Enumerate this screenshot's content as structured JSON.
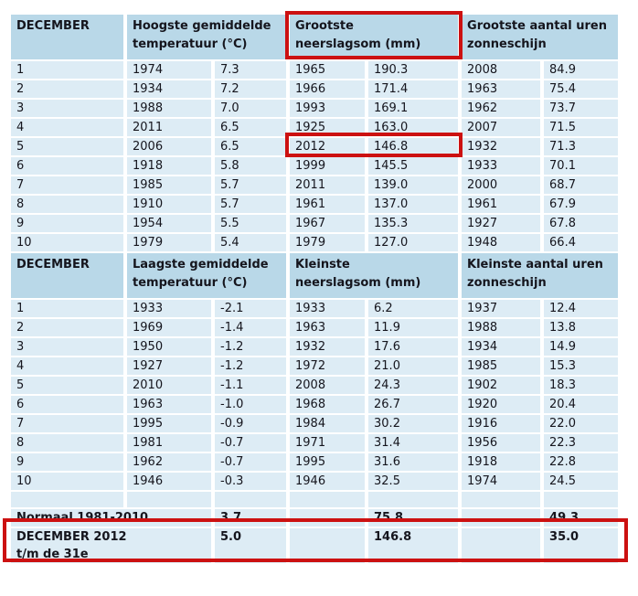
{
  "colors": {
    "header_bg": "#b9d8e8",
    "row_bg": "#ddecf5",
    "text": "#15151d",
    "highlight_red": "#cc1111"
  },
  "section1": {
    "col_headers": [
      {
        "line1": "DECEMBER",
        "line2": ""
      },
      {
        "line1": "Hoogste gemiddelde",
        "line2": "temperatuur (°C)"
      },
      {
        "line1": "Grootste",
        "line2": "neerslagsom (mm)"
      },
      {
        "line1": "Grootste aantal uren",
        "line2": "zonneschijn"
      }
    ],
    "rows": [
      {
        "rank": "1",
        "temp_year": "1974",
        "temp": "7.3",
        "rain_year": "1965",
        "rain": "190.3",
        "sun_year": "2008",
        "sun": "84.9"
      },
      {
        "rank": "2",
        "temp_year": "1934",
        "temp": "7.2",
        "rain_year": "1966",
        "rain": "171.4",
        "sun_year": "1963",
        "sun": "75.4"
      },
      {
        "rank": "3",
        "temp_year": "1988",
        "temp": "7.0",
        "rain_year": "1993",
        "rain": "169.1",
        "sun_year": "1962",
        "sun": "73.7"
      },
      {
        "rank": "4",
        "temp_year": "2011",
        "temp": "6.5",
        "rain_year": "1925",
        "rain": "163.0",
        "sun_year": "2007",
        "sun": "71.5"
      },
      {
        "rank": "5",
        "temp_year": "2006",
        "temp": "6.5",
        "rain_year": "2012",
        "rain": "146.8",
        "sun_year": "1932",
        "sun": "71.3"
      },
      {
        "rank": "6",
        "temp_year": "1918",
        "temp": "5.8",
        "rain_year": "1999",
        "rain": "145.5",
        "sun_year": "1933",
        "sun": "70.1"
      },
      {
        "rank": "7",
        "temp_year": "1985",
        "temp": "5.7",
        "rain_year": "2011",
        "rain": "139.0",
        "sun_year": "2000",
        "sun": "68.7"
      },
      {
        "rank": "8",
        "temp_year": "1910",
        "temp": "5.7",
        "rain_year": "1961",
        "rain": "137.0",
        "sun_year": "1961",
        "sun": "67.9"
      },
      {
        "rank": "9",
        "temp_year": "1954",
        "temp": "5.5",
        "rain_year": "1967",
        "rain": "135.3",
        "sun_year": "1927",
        "sun": "67.8"
      },
      {
        "rank": "10",
        "temp_year": "1979",
        "temp": "5.4",
        "rain_year": "1979",
        "rain": "127.0",
        "sun_year": "1948",
        "sun": "66.4"
      }
    ]
  },
  "section2": {
    "col_headers": [
      {
        "line1": "DECEMBER",
        "line2": ""
      },
      {
        "line1": "Laagste gemiddelde",
        "line2": "temperatuur (°C)"
      },
      {
        "line1": "Kleinste",
        "line2": "neerslagsom (mm)"
      },
      {
        "line1": "Kleinste aantal uren",
        "line2": "zonneschijn"
      }
    ],
    "rows": [
      {
        "rank": "1",
        "temp_year": "1933",
        "temp": "-2.1",
        "rain_year": "1933",
        "rain": "6.2",
        "sun_year": "1937",
        "sun": "12.4"
      },
      {
        "rank": "2",
        "temp_year": "1969",
        "temp": "-1.4",
        "rain_year": "1963",
        "rain": "11.9",
        "sun_year": "1988",
        "sun": "13.8"
      },
      {
        "rank": "3",
        "temp_year": "1950",
        "temp": "-1.2",
        "rain_year": "1932",
        "rain": "17.6",
        "sun_year": "1934",
        "sun": "14.9"
      },
      {
        "rank": "4",
        "temp_year": "1927",
        "temp": "-1.2",
        "rain_year": "1972",
        "rain": "21.0",
        "sun_year": "1985",
        "sun": "15.3"
      },
      {
        "rank": "5",
        "temp_year": "2010",
        "temp": "-1.1",
        "rain_year": "2008",
        "rain": "24.3",
        "sun_year": "1902",
        "sun": "18.3"
      },
      {
        "rank": "6",
        "temp_year": "1963",
        "temp": "-1.0",
        "rain_year": "1968",
        "rain": "26.7",
        "sun_year": "1920",
        "sun": "20.4"
      },
      {
        "rank": "7",
        "temp_year": "1995",
        "temp": "-0.9",
        "rain_year": "1984",
        "rain": "30.2",
        "sun_year": "1916",
        "sun": "22.0"
      },
      {
        "rank": "8",
        "temp_year": "1981",
        "temp": "-0.7",
        "rain_year": "1971",
        "rain": "31.4",
        "sun_year": "1956",
        "sun": "22.3"
      },
      {
        "rank": "9",
        "temp_year": "1962",
        "temp": "-0.7",
        "rain_year": "1995",
        "rain": "31.6",
        "sun_year": "1918",
        "sun": "22.8"
      },
      {
        "rank": "10",
        "temp_year": "1946",
        "temp": "-0.3",
        "rain_year": "1946",
        "rain": "32.5",
        "sun_year": "1974",
        "sun": "24.5"
      }
    ]
  },
  "footer": {
    "normaal": {
      "label": "Normaal 1981-2010",
      "temp": "3.7",
      "rain": "75.8",
      "sun": "49.3"
    },
    "december2012": {
      "label_line1": "DECEMBER 2012",
      "label_line2": "t/m de 31e",
      "temp": "5.0",
      "rain": "146.8",
      "sun": "35.0"
    }
  }
}
